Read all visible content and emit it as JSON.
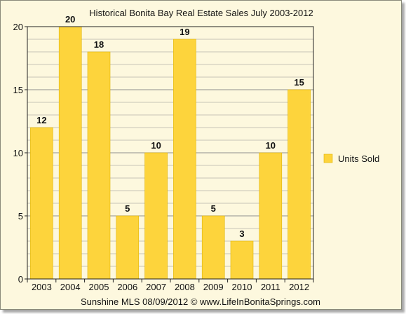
{
  "chart_data": {
    "type": "bar",
    "title": "Historical Bonita Bay Real Estate Sales July 2003-2012",
    "categories": [
      "2003",
      "2004",
      "2005",
      "2006",
      "2007",
      "2008",
      "2009",
      "2010",
      "2011",
      "2012"
    ],
    "series": [
      {
        "name": "Units Sold",
        "values": [
          12,
          20,
          18,
          5,
          10,
          19,
          5,
          3,
          10,
          15
        ]
      }
    ],
    "data_labels": [
      "12",
      "20",
      "18",
      "5",
      "10",
      "19",
      "5",
      "3",
      "10",
      "15"
    ],
    "ylim": [
      0,
      20
    ],
    "yticks": [
      0,
      5,
      10,
      15,
      20
    ],
    "grid": true,
    "legend_position": "right",
    "footer": "Sunshine MLS 08/09/2012  ©  www.LifeInBonitaSprings.com",
    "colors": {
      "bar": "#fdd43c",
      "bar_stroke": "#e0b400",
      "plot_bg": "#fdf8de",
      "grid": "#8f8f8f"
    }
  }
}
